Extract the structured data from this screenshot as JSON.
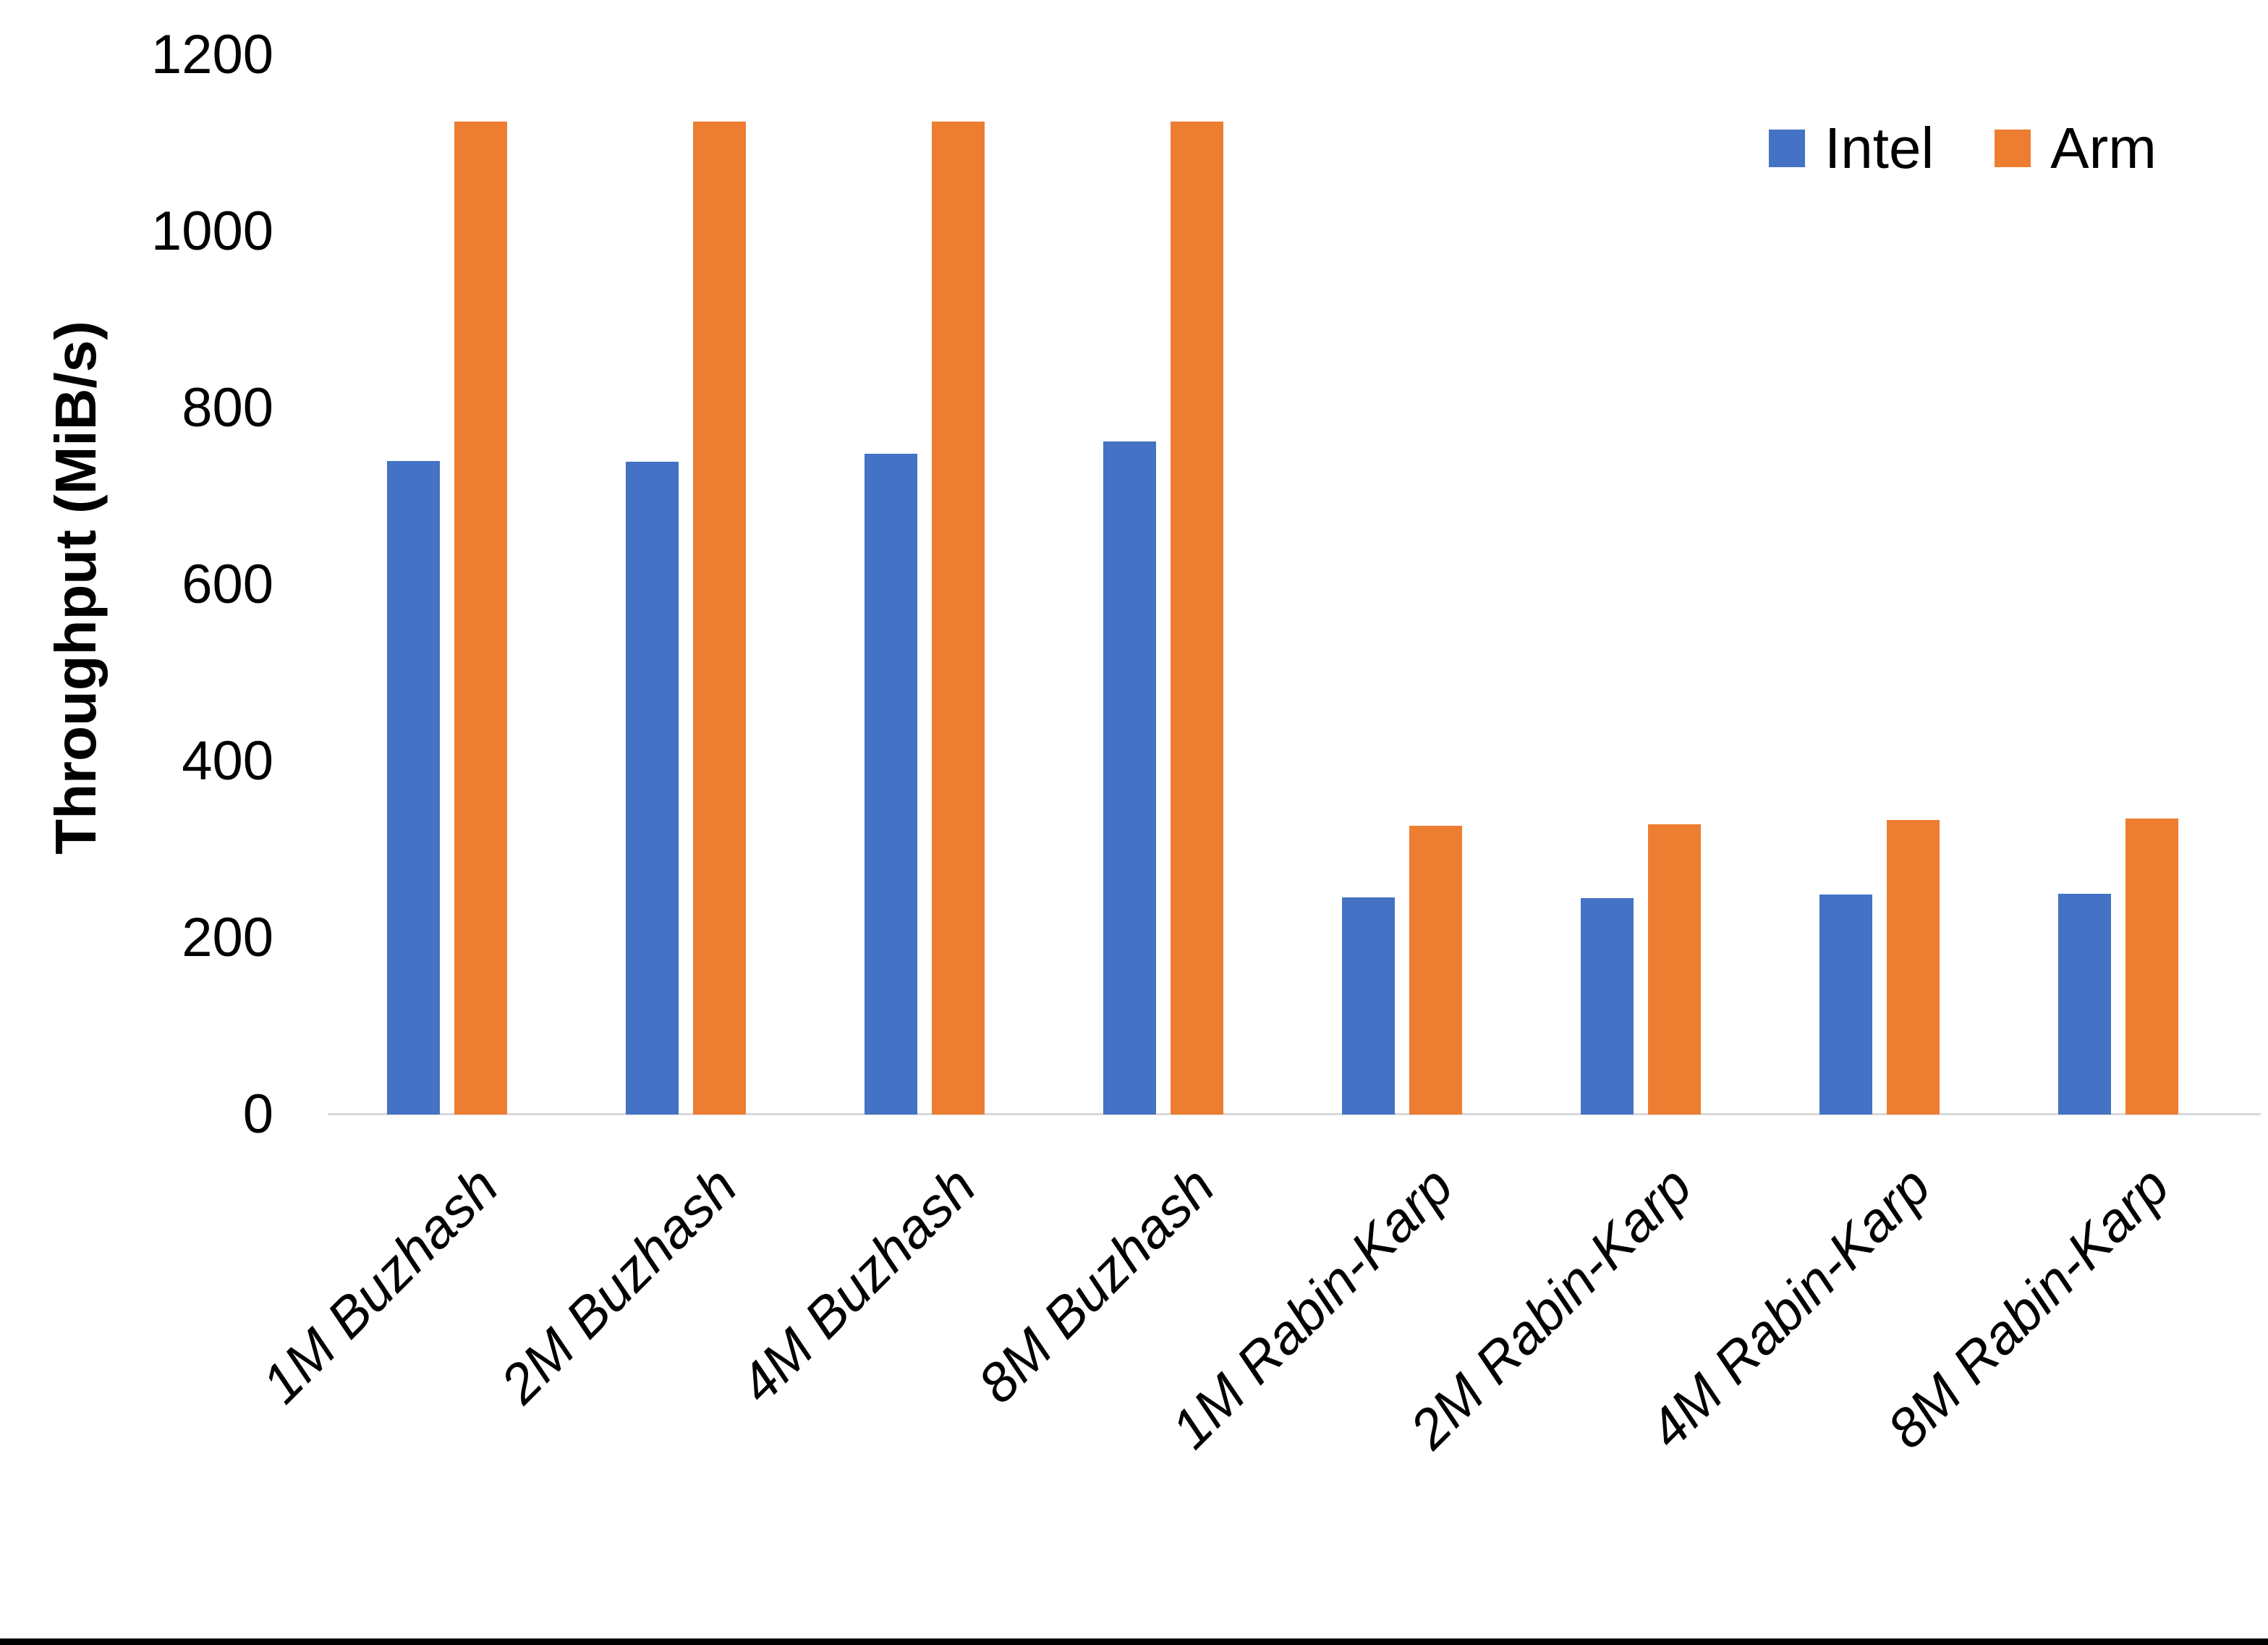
{
  "chart_data": {
    "type": "bar",
    "title": "",
    "xlabel": "",
    "ylabel": "Throughput (MiB/s)",
    "ylim": [
      0,
      1200
    ],
    "ytick_step": 200,
    "grid": false,
    "legend_position": "top-right",
    "categories": [
      "1M Buzhash",
      "2M Buzhash",
      "4M Buzhash",
      "8M Buzhash",
      "1M Rabin-Karp",
      "2M Rabin-Karp",
      "4M Rabin-Karp",
      "8M Rabin-Karp"
    ],
    "series": [
      {
        "name": "Intel",
        "color": "#4472C4",
        "values": [
          740,
          739,
          748,
          762,
          246,
          245,
          249,
          250
        ]
      },
      {
        "name": "Arm",
        "color": "#ED7D31",
        "values": [
          1125,
          1125,
          1125,
          1125,
          327,
          329,
          334,
          335
        ]
      }
    ]
  },
  "colors": {
    "intel_bar": "#4472C4",
    "arm_bar": "#ED7D31",
    "axis_line": "#D9D9D9",
    "text": "#000000",
    "bottom_border": "#000000"
  }
}
